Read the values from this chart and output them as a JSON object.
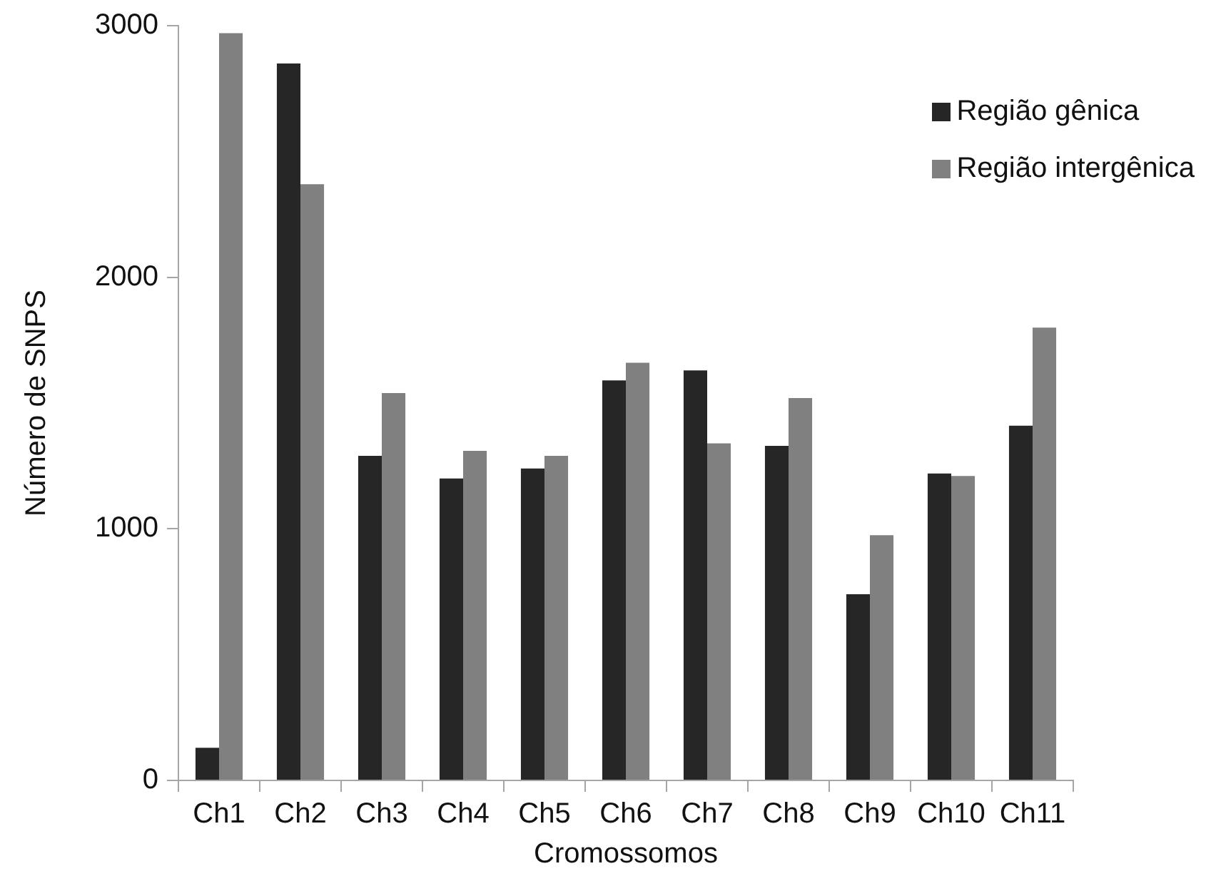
{
  "chart_data": {
    "type": "bar",
    "xlabel": "Cromossomos",
    "ylabel": "Número de SNPS",
    "categories": [
      "Ch1",
      "Ch2",
      "Ch3",
      "Ch4",
      "Ch5",
      "Ch6",
      "Ch7",
      "Ch8",
      "Ch9",
      "Ch10",
      "Ch11"
    ],
    "series": [
      {
        "name": "Região gênica",
        "color": "#262626",
        "values": [
          130,
          2850,
          1290,
          1200,
          1240,
          1590,
          1630,
          1330,
          740,
          1220,
          1410
        ]
      },
      {
        "name": "Região intergênica",
        "color": "#808080",
        "values": [
          2970,
          2370,
          1540,
          1310,
          1290,
          1660,
          1340,
          1520,
          975,
          1210,
          1800
        ]
      }
    ],
    "ylim": [
      0,
      3000
    ],
    "yticks": [
      0,
      1000,
      2000,
      3000
    ],
    "grid": false,
    "legend": "top right"
  }
}
